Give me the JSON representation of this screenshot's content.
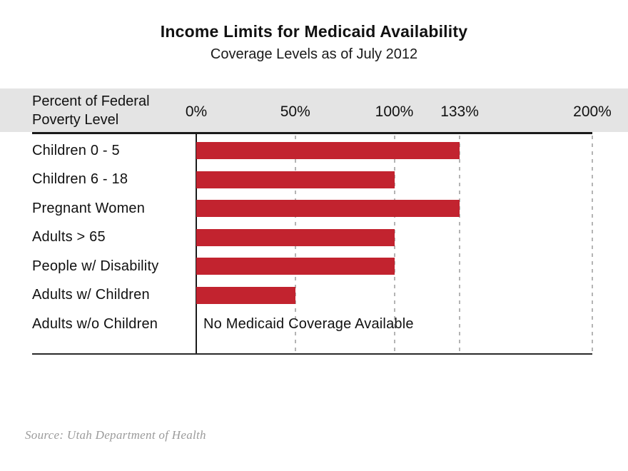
{
  "title": "Income Limits for Medicaid Availability",
  "subtitle": "Coverage Levels as of July 2012",
  "axis_header": {
    "line1": "Percent of Federal",
    "line2": "Poverty Level"
  },
  "source": "Source: Utah Department of Health",
  "colors": {
    "bar": "#c2232f",
    "band": "#e4e4e4",
    "gridline": "#b4b4b4",
    "axis": "#1a1a1a",
    "source_text": "#9b9b9b"
  },
  "chart_data": {
    "type": "bar",
    "orientation": "horizontal",
    "title": "Income Limits for Medicaid Availability",
    "subtitle": "Coverage Levels as of July 2012",
    "xlabel": "Percent of Federal Poverty Level",
    "ylabel": "",
    "xlim": [
      0,
      200
    ],
    "grid": "vertical-dashed",
    "ticks": [
      {
        "value": 0,
        "label": "0%"
      },
      {
        "value": 50,
        "label": "50%"
      },
      {
        "value": 100,
        "label": "100%"
      },
      {
        "value": 133,
        "label": "133%"
      },
      {
        "value": 200,
        "label": "200%"
      }
    ],
    "categories": [
      "Children 0 - 5",
      "Children 6 - 18",
      "Pregnant Women",
      "Adults > 65",
      "People w/ Disability",
      "Adults w/ Children",
      "Adults w/o Children"
    ],
    "values": [
      133,
      100,
      133,
      100,
      100,
      50,
      null
    ],
    "no_coverage_text": "No Medicaid Coverage Available",
    "annotations": [
      {
        "category": "Adults w/o Children",
        "text": "No Medicaid Coverage Available"
      }
    ],
    "legend": null
  }
}
